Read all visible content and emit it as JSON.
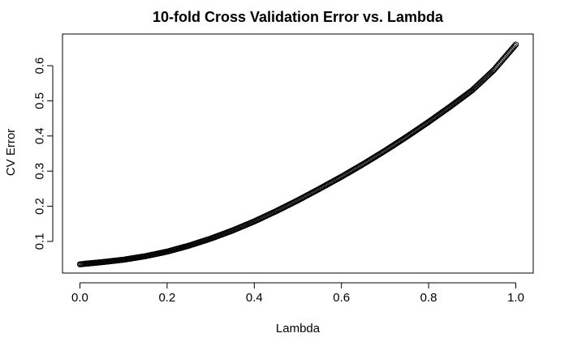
{
  "chart_data": {
    "type": "scatter",
    "title": "10-fold Cross Validation Error vs. Lambda",
    "xlabel": "Lambda",
    "ylabel": "CV Error",
    "xlim": [
      -0.04,
      1.04
    ],
    "ylim": [
      0.01,
      0.69
    ],
    "x_ticks": [
      0.0,
      0.2,
      0.4,
      0.6,
      0.8,
      1.0
    ],
    "x_tick_labels": [
      "0.0",
      "0.2",
      "0.4",
      "0.6",
      "0.8",
      "1.0"
    ],
    "y_ticks": [
      0.1,
      0.2,
      0.3,
      0.4,
      0.5,
      0.6
    ],
    "y_tick_labels": [
      "0.1",
      "0.2",
      "0.3",
      "0.4",
      "0.5",
      "0.6"
    ],
    "grid": false,
    "marker": "open-circle",
    "point_color": "#000000",
    "x": [
      0.0,
      0.05,
      0.1,
      0.15,
      0.2,
      0.25,
      0.3,
      0.35,
      0.4,
      0.45,
      0.5,
      0.55,
      0.6,
      0.65,
      0.7,
      0.75,
      0.8,
      0.85,
      0.9,
      0.95,
      1.0
    ],
    "y": [
      0.035,
      0.041,
      0.048,
      0.058,
      0.071,
      0.088,
      0.108,
      0.131,
      0.157,
      0.186,
      0.217,
      0.25,
      0.284,
      0.32,
      0.358,
      0.398,
      0.44,
      0.484,
      0.53,
      0.588,
      0.66
    ]
  }
}
